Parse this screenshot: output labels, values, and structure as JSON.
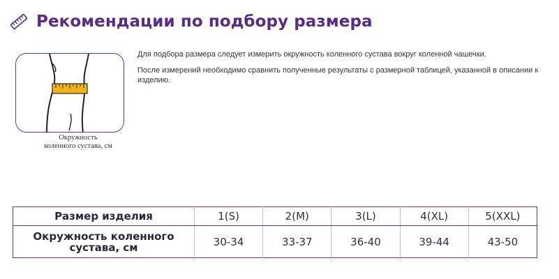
{
  "header": {
    "icon": "ruler-icon",
    "title": "Рекомендации по подбору размера"
  },
  "illustration": {
    "icon": "knee-measure-icon",
    "caption_line1": "Окружность",
    "caption_line2": "коленного сустава, см",
    "colors": {
      "frame": "#6c2f8f",
      "tape": "#f2b21c"
    }
  },
  "description": {
    "p1": "Для подбора размера следует измерить окружность коленного сустава вокруг коленной чашечки.",
    "p2": "После измерений необходимо сравнить полученные результаты с размерной таблицей, указанной в описании к изделию."
  },
  "size_table": {
    "row1_header": "Размер изделия",
    "row2_header_line1": "Окружность коленного",
    "row2_header_line2": "сустава, см",
    "sizes": [
      "1(S)",
      "2(M)",
      "3(L)",
      "4(XL)",
      "5(XXL)"
    ],
    "circumference": [
      "30-34",
      "33-37",
      "36-40",
      "39-44",
      "43-50"
    ]
  }
}
